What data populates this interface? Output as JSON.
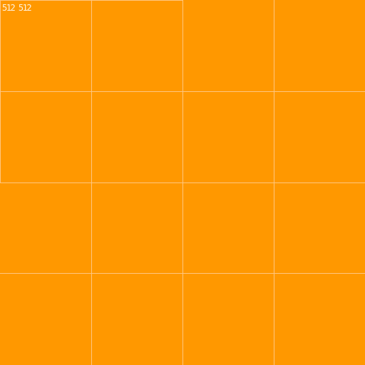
{
  "label": "512 512",
  "colors": {
    "background": "#ff9800",
    "grid": "#ffc680",
    "label": "#fff3e0"
  },
  "grid": {
    "columns": 4,
    "rows": 4
  }
}
